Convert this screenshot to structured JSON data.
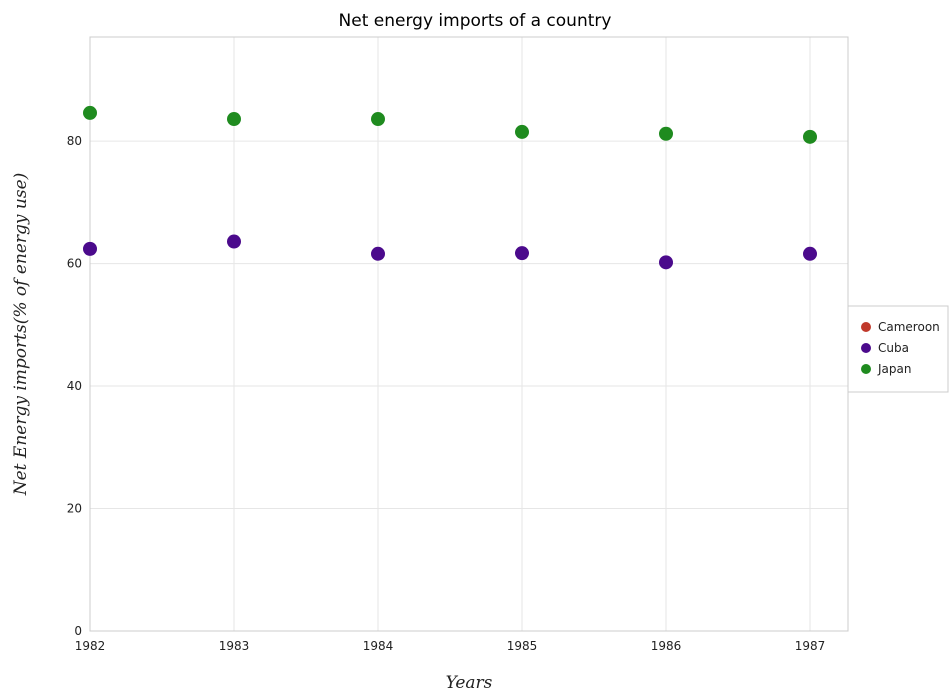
{
  "chart_data": {
    "type": "scatter",
    "title": "Net energy imports of a country",
    "xlabel": "Years",
    "ylabel": "Net Energy imports(% of energy use)",
    "categories": [
      "1982",
      "1983",
      "1984",
      "1985",
      "1986",
      "1987"
    ],
    "ylim": [
      0,
      97
    ],
    "yticks": [
      0,
      20,
      40,
      60,
      80
    ],
    "grid": true,
    "legend_position": "right",
    "series": [
      {
        "name": "Cameroon",
        "color": "#c0392b",
        "values": [
          null,
          null,
          null,
          null,
          null,
          null
        ]
      },
      {
        "name": "Cuba",
        "color": "#4b0a8c",
        "values": [
          62.4,
          63.6,
          61.6,
          61.7,
          60.2,
          61.6
        ]
      },
      {
        "name": "Japan",
        "color": "#1f8b1f",
        "values": [
          84.6,
          83.6,
          83.6,
          81.5,
          81.2,
          80.7
        ]
      }
    ]
  }
}
